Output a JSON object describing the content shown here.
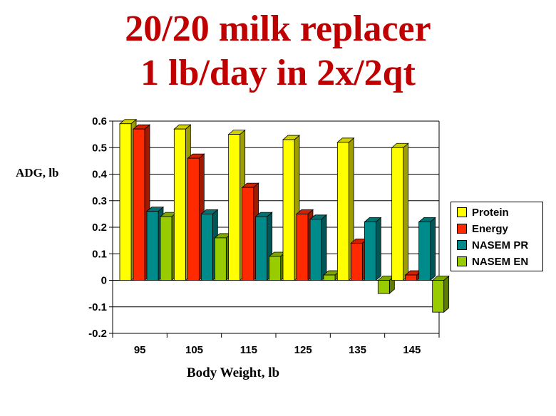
{
  "title_line1": "20/20 milk replacer",
  "title_line2": "1 lb/day in 2x/2qt",
  "chart_data": {
    "type": "bar",
    "title": "20/20 milk replacer 1 lb/day in 2x/2qt",
    "xlabel": "Body Weight, lb",
    "ylabel": "ADG, lb",
    "categories": [
      "95",
      "105",
      "115",
      "125",
      "135",
      "145"
    ],
    "yticks": [
      "0.6",
      "0.5",
      "0.4",
      "0.3",
      "0.2",
      "0.1",
      "0",
      "-0.1",
      "-0.2"
    ],
    "ylim": [
      -0.2,
      0.6
    ],
    "grid": true,
    "legend_position": "right",
    "series": [
      {
        "name": "Protein",
        "color": "#ffff00",
        "values": [
          0.59,
          0.57,
          0.55,
          0.53,
          0.52,
          0.5
        ]
      },
      {
        "name": "Energy",
        "color": "#ff2a00",
        "values": [
          0.57,
          0.46,
          0.35,
          0.25,
          0.14,
          0.02
        ]
      },
      {
        "name": "NASEM PR",
        "color": "#008b8b",
        "values": [
          0.26,
          0.25,
          0.24,
          0.23,
          0.22,
          0.22
        ]
      },
      {
        "name": "NASEM EN",
        "color": "#99cc00",
        "values": [
          0.24,
          0.16,
          0.09,
          0.02,
          -0.05,
          -0.12
        ]
      }
    ]
  }
}
